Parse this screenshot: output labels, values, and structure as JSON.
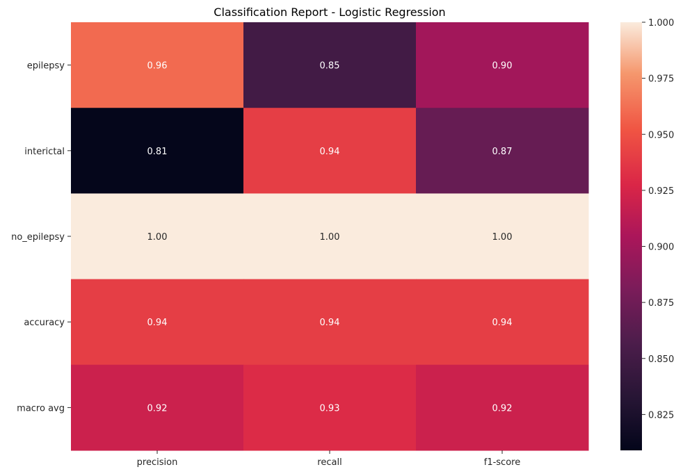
{
  "chart_data": {
    "type": "heatmap",
    "title": "Classification Report - Logistic Regression",
    "xlabel": "",
    "ylabel": "",
    "columns": [
      "precision",
      "recall",
      "f1-score"
    ],
    "rows": [
      "epilepsy",
      "interictal",
      "no_epilepsy",
      "accuracy",
      "macro avg"
    ],
    "values": [
      [
        0.96,
        0.85,
        0.9
      ],
      [
        0.81,
        0.94,
        0.87
      ],
      [
        1.0,
        1.0,
        1.0
      ],
      [
        0.94,
        0.94,
        0.94
      ],
      [
        0.92,
        0.93,
        0.92
      ]
    ],
    "cell_labels": [
      [
        "0.96",
        "0.85",
        "0.90"
      ],
      [
        "0.81",
        "0.94",
        "0.87"
      ],
      [
        "1.00",
        "1.00",
        "1.00"
      ],
      [
        "0.94",
        "0.94",
        "0.94"
      ],
      [
        "0.92",
        "0.93",
        "0.92"
      ]
    ],
    "colormap": "rocket",
    "colorbar": {
      "vmin": 0.809,
      "vmax": 1.0,
      "ticks": [
        0.825,
        0.85,
        0.875,
        0.9,
        0.925,
        0.95,
        0.975,
        1.0
      ],
      "tick_labels": [
        "0.825",
        "0.850",
        "0.875",
        "0.900",
        "0.925",
        "0.950",
        "0.975",
        "1.000"
      ],
      "position": "right"
    },
    "grid": false,
    "legend": "none"
  }
}
